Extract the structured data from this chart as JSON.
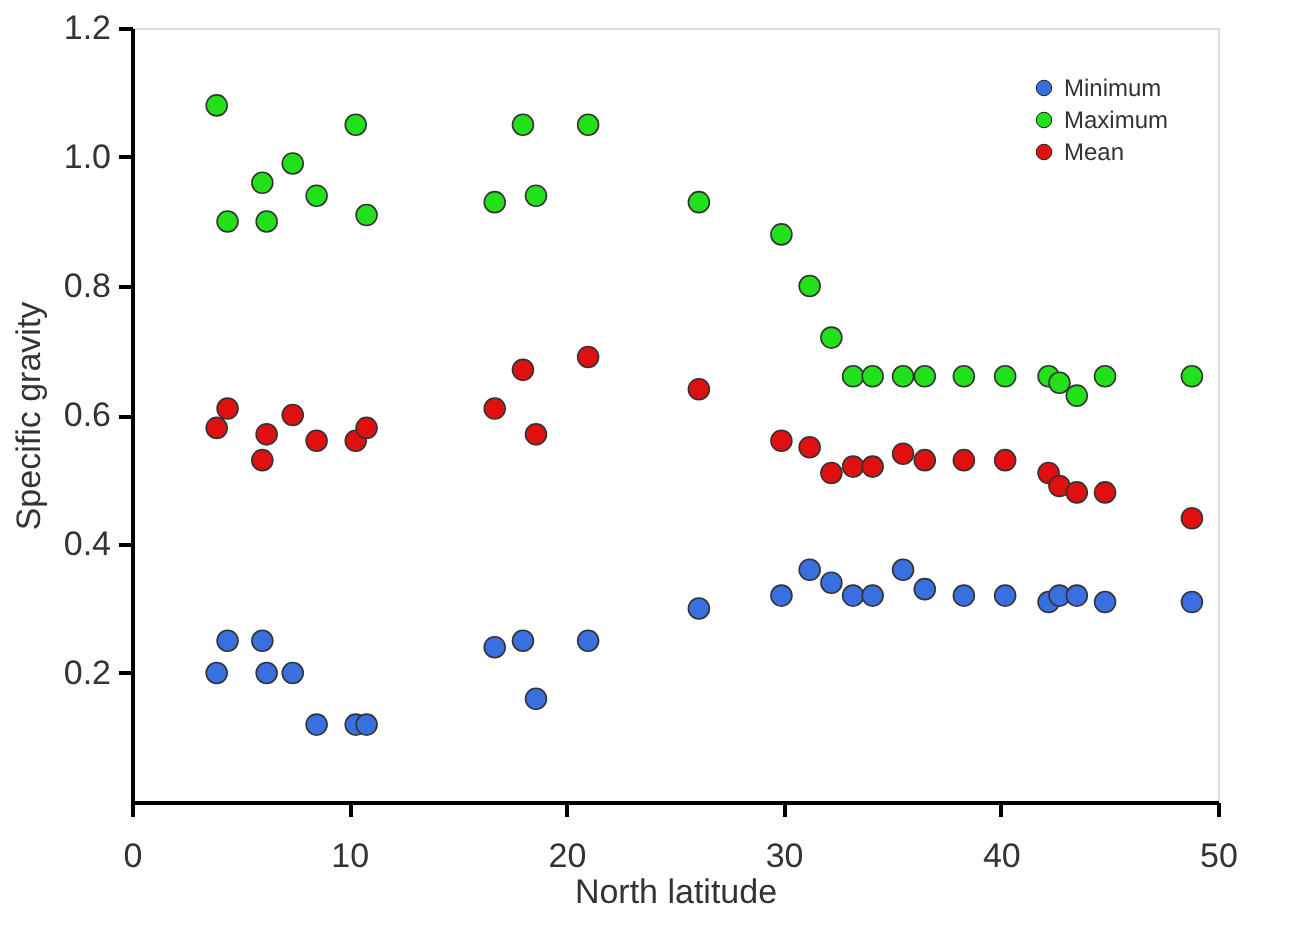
{
  "chart_data": {
    "type": "scatter",
    "xlabel": "North latitude",
    "ylabel": "Specific gravity",
    "xlim": [
      0,
      50
    ],
    "xticks": [
      0,
      10,
      20,
      30,
      40,
      50
    ],
    "ylim": [
      0,
      1.2
    ],
    "yticks": [
      0.2,
      0.4,
      0.6,
      0.8,
      {
        "value": 1,
        "label": "1.0"
      },
      1.2
    ],
    "grid": false,
    "legend": "top right",
    "marker": "circle",
    "series": [
      {
        "name": "Minimum",
        "color": "#3a6fe0",
        "x": [
          3.9,
          4.4,
          6.0,
          6.2,
          7.4,
          8.5,
          10.3,
          10.8,
          16.7,
          18.0,
          18.6,
          21.0,
          26.1,
          29.9,
          31.2,
          32.2,
          33.2,
          34.1,
          35.5,
          36.5,
          38.3,
          40.2,
          42.2,
          42.7,
          43.5,
          44.8,
          48.8
        ],
        "values": [
          0.2,
          0.25,
          0.25,
          0.2,
          0.2,
          0.12,
          0.12,
          0.12,
          0.24,
          0.25,
          0.16,
          0.25,
          0.3,
          0.32,
          0.36,
          0.34,
          0.32,
          0.32,
          0.36,
          0.33,
          0.32,
          0.32,
          0.31,
          0.32,
          0.32,
          0.31,
          0.31
        ]
      },
      {
        "name": "Maximum",
        "color": "#22e01a",
        "x": [
          3.9,
          4.4,
          6.0,
          6.2,
          7.4,
          8.5,
          10.3,
          10.8,
          16.7,
          18.0,
          18.6,
          21.0,
          26.1,
          29.9,
          31.2,
          32.2,
          33.2,
          34.1,
          35.5,
          36.5,
          38.3,
          40.2,
          42.2,
          42.7,
          43.5,
          44.8,
          48.8
        ],
        "values": [
          1.08,
          0.9,
          0.96,
          0.9,
          0.99,
          0.94,
          1.05,
          0.91,
          0.93,
          1.05,
          0.94,
          1.05,
          0.93,
          0.88,
          0.8,
          0.72,
          0.66,
          0.66,
          0.66,
          0.66,
          0.66,
          0.66,
          0.66,
          0.65,
          0.63,
          0.66,
          0.66
        ]
      },
      {
        "name": "Mean",
        "color": "#e01010",
        "x": [
          3.9,
          4.4,
          6.0,
          6.2,
          7.4,
          8.5,
          10.3,
          10.8,
          16.7,
          18.0,
          18.6,
          21.0,
          26.1,
          29.9,
          31.2,
          32.2,
          33.2,
          34.1,
          35.5,
          36.5,
          38.3,
          40.2,
          42.2,
          42.7,
          43.5,
          44.8,
          48.8
        ],
        "values": [
          0.58,
          0.61,
          0.53,
          0.57,
          0.6,
          0.56,
          0.56,
          0.58,
          0.61,
          0.67,
          0.57,
          0.69,
          0.64,
          0.56,
          0.55,
          0.51,
          0.52,
          0.52,
          0.54,
          0.53,
          0.53,
          0.53,
          0.51,
          0.49,
          0.48,
          0.48,
          0.44
        ]
      }
    ]
  }
}
